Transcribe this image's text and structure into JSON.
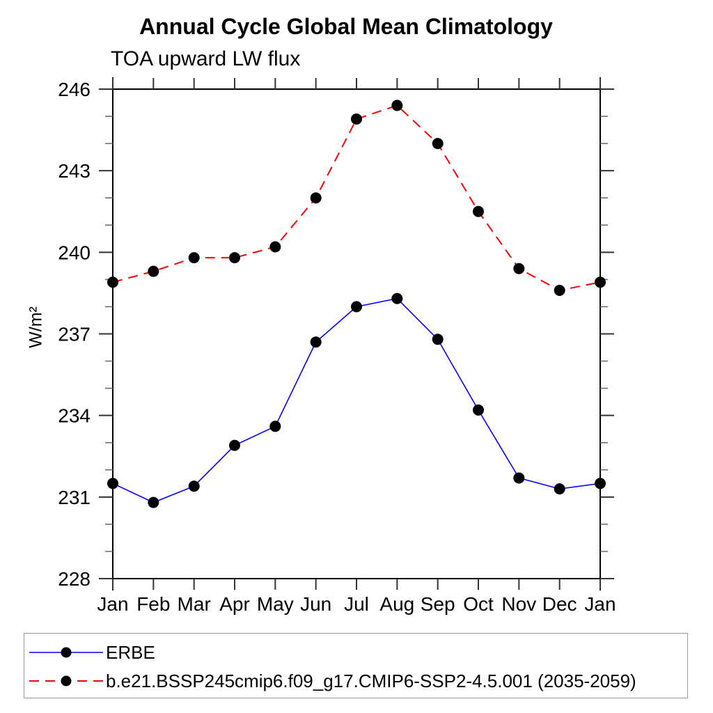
{
  "chart": {
    "title": "Annual Cycle Global Mean Climatology",
    "subtitle": "TOA upward LW flux",
    "ylabel": "W/m²"
  },
  "legend": {
    "position": "bottom",
    "items": [
      {
        "label": "ERBE",
        "color": "#0000ff",
        "style": "solid",
        "marker_icon": "filled-circle"
      },
      {
        "label": "b.e21.BSSP245cmip6.f09_g17.CMIP6-SSP2-4.5.001 (2035-2059)",
        "color": "#ff0000",
        "style": "dashed",
        "marker_icon": "filled-circle"
      }
    ]
  },
  "chart_data": {
    "type": "line",
    "title": "Annual Cycle Global Mean Climatology",
    "subtitle": "TOA upward LW flux",
    "xlabel": "",
    "ylabel": "W/m²",
    "categories": [
      "Jan",
      "Feb",
      "Mar",
      "Apr",
      "May",
      "Jun",
      "Jul",
      "Aug",
      "Sep",
      "Oct",
      "Nov",
      "Dec",
      "Jan"
    ],
    "ylim": [
      228,
      246
    ],
    "ytick_major_step": 3,
    "ytick_minor_step": 1,
    "ytick_labels": [
      228,
      231,
      234,
      237,
      240,
      243,
      246
    ],
    "grid": false,
    "legend_position": "bottom",
    "axis_color": "#000000",
    "marker_color": "#000000",
    "series": [
      {
        "name": "ERBE",
        "color": "#0000ff",
        "line_style": "solid",
        "marker": "filled-circle",
        "values": [
          231.5,
          230.8,
          231.4,
          232.9,
          233.6,
          236.7,
          238.0,
          238.3,
          236.8,
          234.2,
          231.7,
          231.3,
          231.5
        ]
      },
      {
        "name": "b.e21.BSSP245cmip6.f09_g17.CMIP6-SSP2-4.5.001 (2035-2059)",
        "color": "#ff0000",
        "line_style": "dashed",
        "marker": "filled-circle",
        "values": [
          238.9,
          239.3,
          239.8,
          239.8,
          240.2,
          242.0,
          244.9,
          245.4,
          244.0,
          241.5,
          239.4,
          238.6,
          238.9
        ]
      }
    ]
  }
}
